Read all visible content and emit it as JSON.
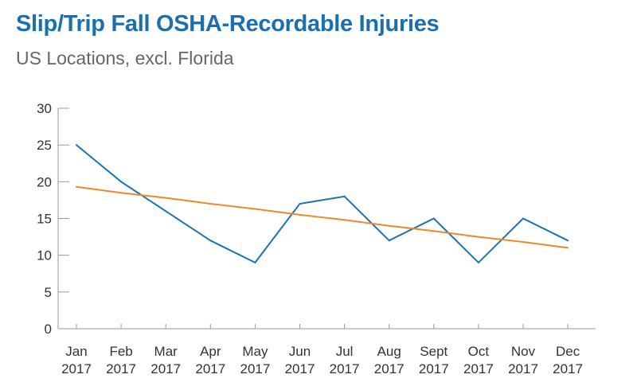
{
  "header": {
    "title": "Slip/Trip Fall OSHA-Recordable Injuries",
    "subtitle": "US Locations, excl. Florida"
  },
  "colors": {
    "title": "#1a6fb0",
    "actual_line": "#1a74b3",
    "trend_line": "#ec8a2a",
    "axis": "#999999"
  },
  "chart_data": {
    "type": "line",
    "title": "Slip/Trip Fall OSHA-Recordable Injuries",
    "subtitle": "US Locations, excl. Florida",
    "categories": [
      [
        "Jan",
        "2017"
      ],
      [
        "Feb",
        "2017"
      ],
      [
        "Mar",
        "2017"
      ],
      [
        "Apr",
        "2017"
      ],
      [
        "May",
        "2017"
      ],
      [
        "Jun",
        "2017"
      ],
      [
        "Jul",
        "2017"
      ],
      [
        "Aug",
        "2017"
      ],
      [
        "Sept",
        "2017"
      ],
      [
        "Oct",
        "2017"
      ],
      [
        "Nov",
        "2017"
      ],
      [
        "Dec",
        "2017"
      ]
    ],
    "series": [
      {
        "values": [
          25,
          20,
          16,
          12,
          9,
          17,
          18,
          12,
          15,
          9,
          15,
          12
        ],
        "color": "#1a74b3"
      },
      {
        "values": [
          19.3,
          18.5,
          17.8,
          17.0,
          16.3,
          15.5,
          14.8,
          14.0,
          13.3,
          12.5,
          11.8,
          11.0
        ],
        "color": "#ec8a2a"
      }
    ],
    "yticks": [
      "0",
      "5",
      "10",
      "15",
      "20",
      "25",
      "30"
    ],
    "ylim": [
      0,
      30
    ],
    "xlabel": "",
    "ylabel": "",
    "grid": false,
    "legend": "none"
  }
}
